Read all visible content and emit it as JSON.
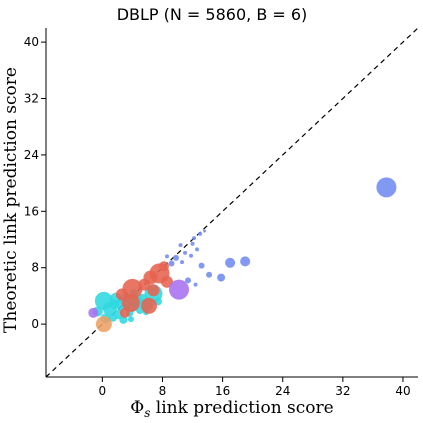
{
  "chart_data": {
    "type": "scatter",
    "title": "DBLP (N = 5860, B = 6)",
    "xlabel": "Φs link prediction score",
    "ylabel": "Theoretic link prediction score",
    "xlim": [
      -7.5,
      42
    ],
    "ylim": [
      -7.5,
      42
    ],
    "xticks": [
      0,
      8,
      16,
      24,
      32,
      40
    ],
    "yticks": [
      0,
      8,
      16,
      24,
      32,
      40
    ],
    "diagonal": "y = x (dashed)",
    "grid": false,
    "colors": {
      "cyan": "#2fd8e0",
      "red": "#e66350",
      "orange": "#eea064",
      "purple": "#a771f0",
      "blue": "#6f8bf0"
    },
    "series": [
      {
        "color": "cyan",
        "points": [
          {
            "x": 0.2,
            "y": 3.3,
            "r": 9
          },
          {
            "x": 1.0,
            "y": 2.2,
            "r": 7
          },
          {
            "x": 1.8,
            "y": 3.6,
            "r": 6
          },
          {
            "x": 2.6,
            "y": 2.8,
            "r": 6
          },
          {
            "x": 3.2,
            "y": 3.4,
            "r": 7
          },
          {
            "x": 4.0,
            "y": 2.6,
            "r": 6
          },
          {
            "x": 4.6,
            "y": 3.2,
            "r": 6
          },
          {
            "x": 5.3,
            "y": 3.6,
            "r": 5
          },
          {
            "x": 6.0,
            "y": 2.8,
            "r": 6
          },
          {
            "x": 6.8,
            "y": 4.3,
            "r": 9
          },
          {
            "x": 2.2,
            "y": 1.4,
            "r": 5
          },
          {
            "x": 3.6,
            "y": 1.6,
            "r": 4
          },
          {
            "x": 5.0,
            "y": 2.0,
            "r": 4
          },
          {
            "x": -0.6,
            "y": 1.8,
            "r": 5
          },
          {
            "x": 1.4,
            "y": 0.9,
            "r": 4
          },
          {
            "x": 2.8,
            "y": 0.6,
            "r": 4
          },
          {
            "x": 4.2,
            "y": 4.4,
            "r": 4
          },
          {
            "x": 0.4,
            "y": 0.8,
            "r": 5
          },
          {
            "x": 3.8,
            "y": 0.7,
            "r": 3
          },
          {
            "x": 5.8,
            "y": 1.7,
            "r": 3
          },
          {
            "x": 7.4,
            "y": 3.2,
            "r": 4
          },
          {
            "x": 1.6,
            "y": 2.8,
            "r": 5
          }
        ]
      },
      {
        "color": "red",
        "points": [
          {
            "x": 4.0,
            "y": 5.0,
            "r": 10
          },
          {
            "x": 7.6,
            "y": 7.2,
            "r": 10
          },
          {
            "x": 6.4,
            "y": 6.6,
            "r": 7
          },
          {
            "x": 3.8,
            "y": 3.0,
            "r": 9
          },
          {
            "x": 6.2,
            "y": 2.6,
            "r": 8
          },
          {
            "x": 5.6,
            "y": 5.6,
            "r": 6
          },
          {
            "x": 8.6,
            "y": 6.0,
            "r": 6
          },
          {
            "x": 2.6,
            "y": 4.2,
            "r": 6
          },
          {
            "x": 3.0,
            "y": 1.6,
            "r": 5
          },
          {
            "x": 6.8,
            "y": 4.8,
            "r": 6
          },
          {
            "x": 8.2,
            "y": 8.2,
            "r": 5
          }
        ]
      },
      {
        "color": "orange",
        "points": [
          {
            "x": 0.2,
            "y": 0.0,
            "r": 8
          }
        ]
      },
      {
        "color": "purple",
        "points": [
          {
            "x": 10.2,
            "y": 4.9,
            "r": 10
          },
          {
            "x": -1.2,
            "y": 1.6,
            "r": 5
          }
        ]
      },
      {
        "color": "blue",
        "points": [
          {
            "x": 37.8,
            "y": 19.4,
            "r": 10
          },
          {
            "x": 19.0,
            "y": 8.9,
            "r": 5
          },
          {
            "x": 17.0,
            "y": 8.7,
            "r": 5
          },
          {
            "x": 15.8,
            "y": 6.6,
            "r": 4
          },
          {
            "x": 13.2,
            "y": 8.3,
            "r": 3
          },
          {
            "x": 14.2,
            "y": 7.0,
            "r": 3
          },
          {
            "x": 11.4,
            "y": 6.2,
            "r": 3
          },
          {
            "x": 11.8,
            "y": 9.7,
            "r": 2
          },
          {
            "x": 12.6,
            "y": 10.6,
            "r": 2
          },
          {
            "x": 12.0,
            "y": 11.4,
            "r": 2
          },
          {
            "x": 11.0,
            "y": 10.1,
            "r": 2
          },
          {
            "x": 10.6,
            "y": 8.8,
            "r": 2
          },
          {
            "x": 9.8,
            "y": 9.4,
            "r": 3
          },
          {
            "x": 9.2,
            "y": 8.6,
            "r": 3
          },
          {
            "x": 8.6,
            "y": 9.6,
            "r": 2
          },
          {
            "x": 12.2,
            "y": 12.2,
            "r": 2
          },
          {
            "x": 13.0,
            "y": 12.8,
            "r": 2
          },
          {
            "x": 13.6,
            "y": 13.2,
            "r": 1.5
          },
          {
            "x": 10.4,
            "y": 11.2,
            "r": 2
          },
          {
            "x": 12.4,
            "y": 5.6,
            "r": 2
          }
        ]
      }
    ]
  }
}
